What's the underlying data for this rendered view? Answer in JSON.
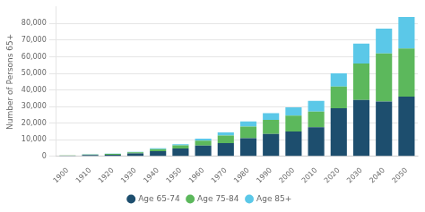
{
  "chart_data": {
    "type": "bar",
    "stacked": true,
    "categories": [
      "1900",
      "1910",
      "1920",
      "1930",
      "1940",
      "1950",
      "1960",
      "1970",
      "1980",
      "1990",
      "2000",
      "2010",
      "2020",
      "2030",
      "2040",
      "2050"
    ],
    "series": [
      {
        "name": "Age 65-74",
        "color": "#1d4e6e",
        "values": [
          400,
          800,
          1000,
          1800,
          3200,
          4800,
          6500,
          8000,
          11000,
          13500,
          15000,
          17500,
          29000,
          34000,
          33000,
          36000
        ]
      },
      {
        "name": "Age 75-84",
        "color": "#5cb85c",
        "values": [
          150,
          350,
          450,
          700,
          1200,
          1800,
          3000,
          4500,
          7000,
          8500,
          9500,
          9500,
          13000,
          22000,
          29000,
          29000
        ]
      },
      {
        "name": "Age 85+",
        "color": "#5bc8e8",
        "values": [
          50,
          100,
          150,
          250,
          450,
          700,
          1200,
          2000,
          3000,
          4000,
          5000,
          6500,
          8000,
          12000,
          15000,
          19000
        ]
      }
    ],
    "ylabel": "Number of Persons 65+",
    "ylim": [
      0,
      90000
    ],
    "yticks": [
      0,
      {
        "value": 10000,
        "label": "10,000"
      },
      {
        "value": 20000,
        "label": "20,000"
      },
      {
        "value": 30000,
        "label": "30,000"
      },
      {
        "value": 40000,
        "label": "40,000"
      },
      {
        "value": 50000,
        "label": "50,000"
      },
      {
        "value": 60000,
        "label": "60,000"
      },
      {
        "value": 70000,
        "label": "70,000"
      },
      {
        "value": 80000,
        "label": "80,000"
      }
    ],
    "grid": true,
    "legend": "bottom"
  }
}
